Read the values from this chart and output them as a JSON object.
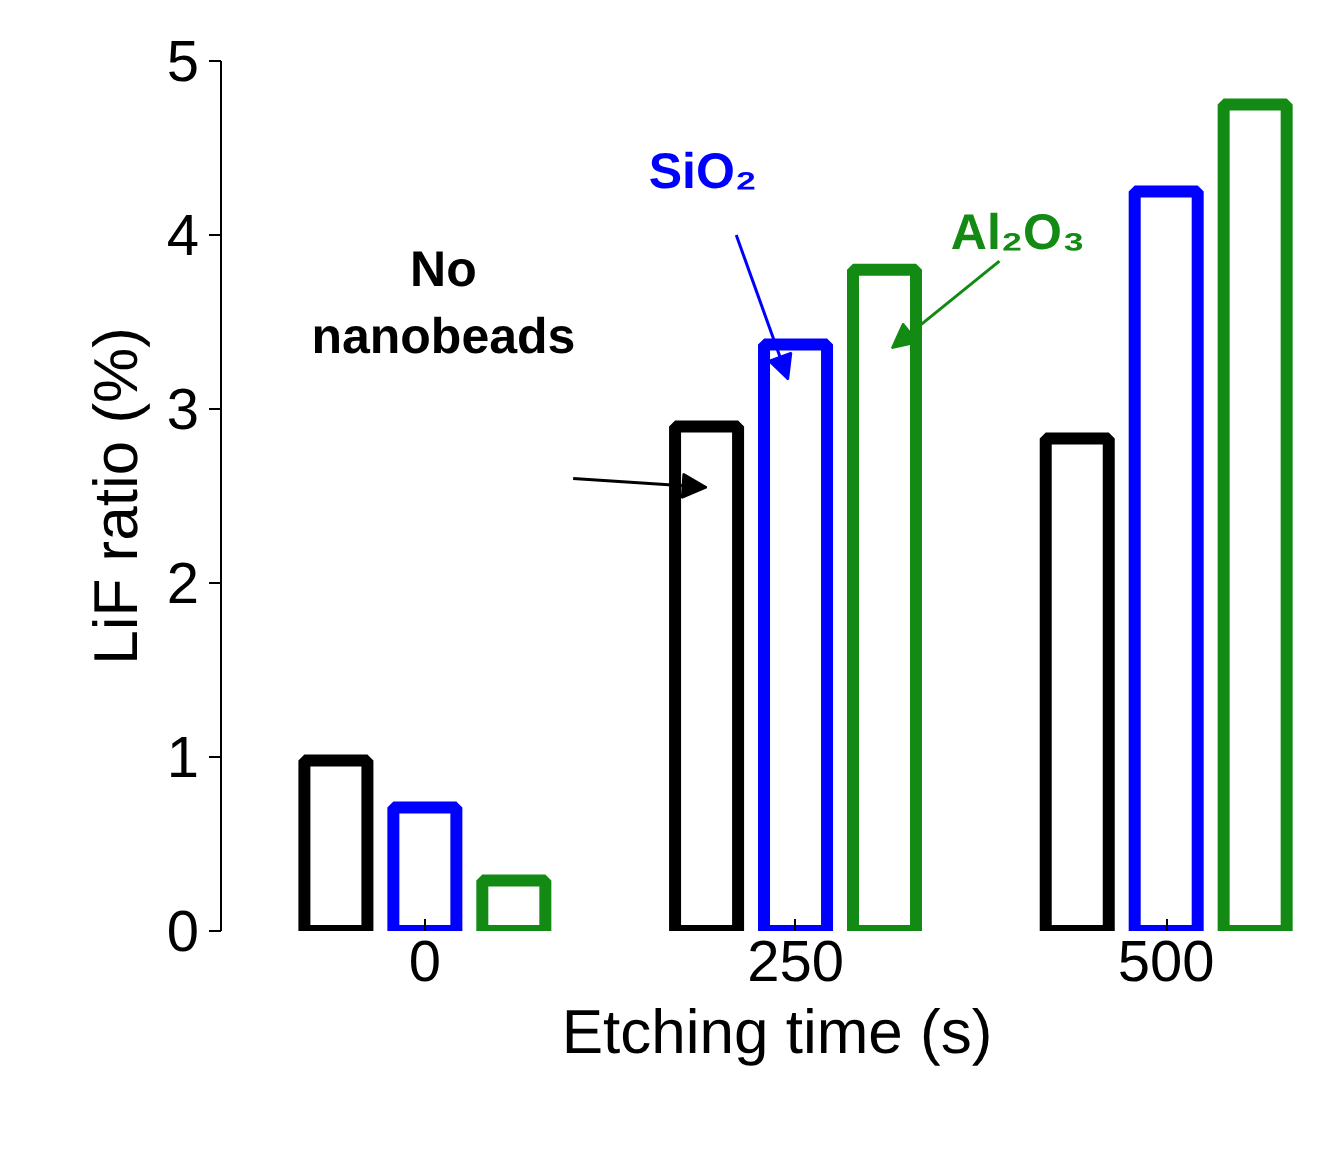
{
  "chart_data": {
    "type": "bar",
    "xlabel": "Etching time (s)",
    "ylabel": "LiF ratio (%)",
    "categories": [
      "0",
      "250",
      "500"
    ],
    "series": [
      {
        "name": "No nanobeads",
        "color": "#000000",
        "values": [
          0.98,
          2.9,
          2.83
        ]
      },
      {
        "name": "SiO₂",
        "color": "#0000ff",
        "values": [
          0.71,
          3.37,
          4.25
        ]
      },
      {
        "name": "Al₂O₃",
        "color": "#138a13",
        "values": [
          0.29,
          3.8,
          4.75
        ]
      }
    ],
    "ylim": [
      0,
      5
    ],
    "yticks": [
      0,
      1,
      2,
      3,
      4,
      5
    ],
    "grid": false
  }
}
